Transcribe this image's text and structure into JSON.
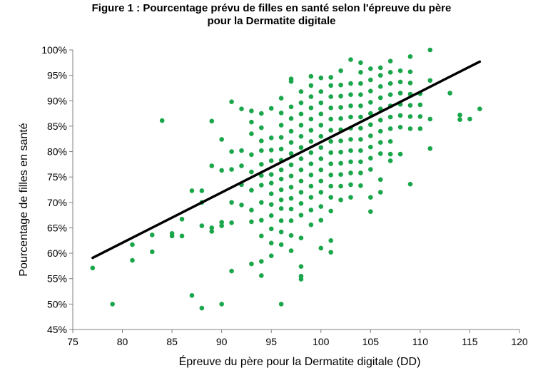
{
  "chart_data": {
    "type": "scatter",
    "title_line1": "Figure 1 : Pourcentage prévu de filles en santé selon l'épreuve du père",
    "title_line2": "pour la Dermatite digitale",
    "xlabel": "Épreuve du père pour la Dermatite digitale (DD)",
    "ylabel": "Pourcentage de filles en santé",
    "xlim": [
      75,
      120
    ],
    "ylim": [
      45,
      100
    ],
    "x_ticks": [
      75,
      80,
      85,
      90,
      95,
      100,
      105,
      110,
      115,
      120
    ],
    "y_ticks": [
      45,
      50,
      55,
      60,
      65,
      70,
      75,
      80,
      85,
      90,
      95,
      100
    ],
    "x_tick_labels": [
      "75",
      "80",
      "85",
      "90",
      "95",
      "100",
      "105",
      "110",
      "115",
      "120"
    ],
    "y_tick_labels": [
      "45%",
      "50%",
      "55%",
      "60%",
      "65%",
      "70%",
      "75%",
      "80%",
      "85%",
      "90%",
      "95%",
      "100%"
    ],
    "grid": false,
    "point_color": "#1aa64a",
    "trend_color": "#000000",
    "trendline": {
      "x": [
        77,
        116
      ],
      "y": [
        59.1,
        97.7
      ]
    },
    "points": [
      [
        77,
        57.1
      ],
      [
        79,
        50
      ],
      [
        81,
        58.6
      ],
      [
        81,
        61.7
      ],
      [
        83,
        60.3
      ],
      [
        83,
        63.6
      ],
      [
        84,
        86.1
      ],
      [
        85,
        63.4
      ],
      [
        85,
        63.9
      ],
      [
        86,
        66.7
      ],
      [
        86,
        63.4
      ],
      [
        87,
        51.7
      ],
      [
        87,
        72.3
      ],
      [
        88,
        49.2
      ],
      [
        88,
        65.4
      ],
      [
        88,
        70
      ],
      [
        88,
        72.3
      ],
      [
        89,
        64.3
      ],
      [
        89,
        65
      ],
      [
        89,
        77.2
      ],
      [
        89,
        86
      ],
      [
        90,
        50
      ],
      [
        90,
        65.4
      ],
      [
        90,
        66.1
      ],
      [
        90,
        76.3
      ],
      [
        90,
        82.4
      ],
      [
        91,
        56.5
      ],
      [
        91,
        66
      ],
      [
        91,
        70
      ],
      [
        91,
        76.5
      ],
      [
        91,
        80
      ],
      [
        91,
        89.8
      ],
      [
        92,
        69.5
      ],
      [
        92,
        73.5
      ],
      [
        92,
        77.2
      ],
      [
        92,
        80.2
      ],
      [
        92,
        88.4
      ],
      [
        93,
        57.9
      ],
      [
        93,
        66.2
      ],
      [
        93,
        68.5
      ],
      [
        93,
        72.4
      ],
      [
        93,
        76
      ],
      [
        93,
        79.4
      ],
      [
        93,
        83.5
      ],
      [
        93,
        85.8
      ],
      [
        93,
        88
      ],
      [
        94,
        55.6
      ],
      [
        94,
        58.4
      ],
      [
        94,
        63.4
      ],
      [
        94,
        66.5
      ],
      [
        94,
        70
      ],
      [
        94,
        73.4
      ],
      [
        94,
        75.3
      ],
      [
        94,
        77.5
      ],
      [
        94,
        80.2
      ],
      [
        94,
        82.1
      ],
      [
        94,
        84.7
      ],
      [
        94,
        87.5
      ],
      [
        95,
        59.5
      ],
      [
        95,
        62
      ],
      [
        95,
        64.8
      ],
      [
        95,
        67.4
      ],
      [
        95,
        69.6
      ],
      [
        95,
        71.7
      ],
      [
        95,
        73.8
      ],
      [
        95,
        75.5
      ],
      [
        95,
        78.2
      ],
      [
        95,
        80.3
      ],
      [
        95,
        82.7
      ],
      [
        95,
        88.5
      ],
      [
        96,
        50
      ],
      [
        96,
        61.7
      ],
      [
        96,
        64.2
      ],
      [
        96,
        66.4
      ],
      [
        96,
        68.8
      ],
      [
        96,
        70.5
      ],
      [
        96,
        72.5
      ],
      [
        96,
        74.6
      ],
      [
        96,
        76.4
      ],
      [
        96,
        78.3
      ],
      [
        96,
        80.5
      ],
      [
        96,
        82.8
      ],
      [
        96,
        85.2
      ],
      [
        96,
        87.6
      ],
      [
        96,
        90.5
      ],
      [
        97,
        60.5
      ],
      [
        97,
        63.5
      ],
      [
        97,
        66.4
      ],
      [
        97,
        68.7
      ],
      [
        97,
        70.8
      ],
      [
        97,
        73
      ],
      [
        97,
        75.2
      ],
      [
        97,
        77.4
      ],
      [
        97,
        79.6
      ],
      [
        97,
        81.8
      ],
      [
        97,
        84
      ],
      [
        97,
        86.5
      ],
      [
        97,
        88.8
      ],
      [
        97,
        93.8
      ],
      [
        97,
        94.3
      ],
      [
        98,
        54.9
      ],
      [
        98,
        55.5
      ],
      [
        98,
        57.4
      ],
      [
        98,
        63
      ],
      [
        98,
        67.5
      ],
      [
        98,
        69.8
      ],
      [
        98,
        72
      ],
      [
        98,
        74.2
      ],
      [
        98,
        76.4
      ],
      [
        98,
        78.6
      ],
      [
        98,
        80.8
      ],
      [
        98,
        83
      ],
      [
        98,
        85.2
      ],
      [
        98,
        87.4
      ],
      [
        98,
        89.6
      ],
      [
        98,
        91.8
      ],
      [
        99,
        65.6
      ],
      [
        99,
        68.5
      ],
      [
        99,
        71
      ],
      [
        99,
        73.2
      ],
      [
        99,
        75.4
      ],
      [
        99,
        77.6
      ],
      [
        99,
        79.8
      ],
      [
        99,
        82
      ],
      [
        99,
        84.2
      ],
      [
        99,
        86.4
      ],
      [
        99,
        88.6
      ],
      [
        99,
        90.8
      ],
      [
        99,
        93
      ],
      [
        99,
        94.8
      ],
      [
        100,
        61
      ],
      [
        100,
        66.5
      ],
      [
        100,
        69.2
      ],
      [
        100,
        72
      ],
      [
        100,
        74.2
      ],
      [
        100,
        76.4
      ],
      [
        100,
        78.6
      ],
      [
        100,
        80.8
      ],
      [
        100,
        83
      ],
      [
        100,
        85.2
      ],
      [
        100,
        87.4
      ],
      [
        100,
        89.6
      ],
      [
        100,
        91.8
      ],
      [
        100,
        94.5
      ],
      [
        101,
        60.2
      ],
      [
        101,
        62.5
      ],
      [
        101,
        68.3
      ],
      [
        101,
        71
      ],
      [
        101,
        73.2
      ],
      [
        101,
        75.4
      ],
      [
        101,
        77.6
      ],
      [
        101,
        79.8
      ],
      [
        101,
        82
      ],
      [
        101,
        84.2
      ],
      [
        101,
        86.4
      ],
      [
        101,
        88.6
      ],
      [
        101,
        90.8
      ],
      [
        101,
        93
      ],
      [
        101,
        94.6
      ],
      [
        102,
        70.5
      ],
      [
        102,
        73.2
      ],
      [
        102,
        75.5
      ],
      [
        102,
        77.7
      ],
      [
        102,
        79.9
      ],
      [
        102,
        82.1
      ],
      [
        102,
        84.3
      ],
      [
        102,
        86.5
      ],
      [
        102,
        88.7
      ],
      [
        102,
        90.9
      ],
      [
        102,
        93.1
      ],
      [
        102,
        95.9
      ],
      [
        103,
        71
      ],
      [
        103,
        73.5
      ],
      [
        103,
        75.8
      ],
      [
        103,
        78
      ],
      [
        103,
        80.2
      ],
      [
        103,
        82.4
      ],
      [
        103,
        84.6
      ],
      [
        103,
        86.8
      ],
      [
        103,
        89
      ],
      [
        103,
        91.2
      ],
      [
        103,
        93.4
      ],
      [
        103,
        98.1
      ],
      [
        104,
        73.3
      ],
      [
        104,
        75.8
      ],
      [
        104,
        78
      ],
      [
        104,
        80.2
      ],
      [
        104,
        82.4
      ],
      [
        104,
        84.6
      ],
      [
        104,
        86.8
      ],
      [
        104,
        89
      ],
      [
        104,
        91.2
      ],
      [
        104,
        93.4
      ],
      [
        104,
        95.6
      ],
      [
        104,
        97.5
      ],
      [
        105,
        68.2
      ],
      [
        105,
        71
      ],
      [
        105,
        76.5
      ],
      [
        105,
        78.7
      ],
      [
        105,
        80.9
      ],
      [
        105,
        83.1
      ],
      [
        105,
        85.3
      ],
      [
        105,
        87.5
      ],
      [
        105,
        89.7
      ],
      [
        105,
        91.9
      ],
      [
        105,
        94.1
      ],
      [
        105,
        96.3
      ],
      [
        106,
        72
      ],
      [
        106,
        74.5
      ],
      [
        106,
        79.6
      ],
      [
        106,
        81.8
      ],
      [
        106,
        84
      ],
      [
        106,
        86.2
      ],
      [
        106,
        88.4
      ],
      [
        106,
        90.6
      ],
      [
        106,
        92.8
      ],
      [
        106,
        95
      ],
      [
        106,
        96.5
      ],
      [
        107,
        78.2
      ],
      [
        107,
        79.5
      ],
      [
        107,
        82
      ],
      [
        107,
        84.5
      ],
      [
        107,
        86.8
      ],
      [
        107,
        89
      ],
      [
        107,
        91.2
      ],
      [
        107,
        93.4
      ],
      [
        107,
        95.6
      ],
      [
        107,
        97.8
      ],
      [
        108,
        79.5
      ],
      [
        108,
        84.8
      ],
      [
        108,
        87.1
      ],
      [
        108,
        89.3
      ],
      [
        108,
        91.5
      ],
      [
        108,
        93.7
      ],
      [
        108,
        95.9
      ],
      [
        109,
        73.6
      ],
      [
        109,
        84.5
      ],
      [
        109,
        86.9
      ],
      [
        109,
        89.1
      ],
      [
        109,
        91.3
      ],
      [
        109,
        93.5
      ],
      [
        109,
        95.7
      ],
      [
        109,
        98.7
      ],
      [
        110,
        84.5
      ],
      [
        110,
        86.9
      ],
      [
        110,
        89.2
      ],
      [
        110,
        91.4
      ],
      [
        111,
        80.6
      ],
      [
        111,
        86.4
      ],
      [
        111,
        94
      ],
      [
        111,
        100
      ],
      [
        113,
        91.5
      ],
      [
        114,
        86.3
      ],
      [
        114,
        87.2
      ],
      [
        115,
        86.4
      ],
      [
        116,
        88.4
      ]
    ]
  }
}
